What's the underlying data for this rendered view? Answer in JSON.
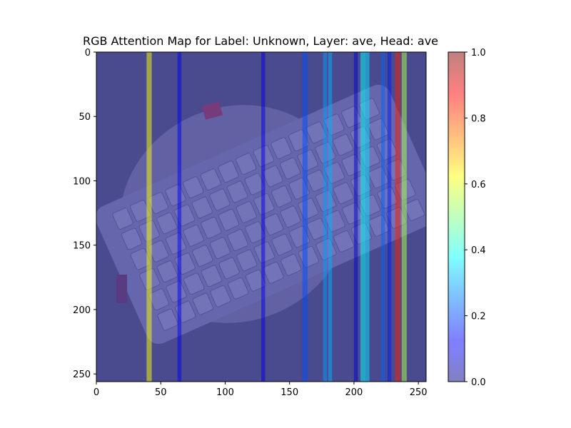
{
  "chart_data": {
    "type": "heatmap",
    "title": "RGB Attention Map for Label: Unknown, Layer: ave, Head: ave",
    "xlabel": "",
    "ylabel": "",
    "xlim": [
      0,
      256
    ],
    "ylim": [
      256,
      0
    ],
    "x_ticks": [
      0,
      50,
      100,
      150,
      200,
      250
    ],
    "y_ticks": [
      0,
      50,
      100,
      150,
      200,
      250
    ],
    "grid": false,
    "overlay_alpha": 0.5,
    "colormap": "jet",
    "background_image": "keyboard photo (white keyboard on dark surface)",
    "column_attention": [
      {
        "x": 39,
        "width": 4,
        "value": 0.62
      },
      {
        "x": 63,
        "width": 3,
        "value": 0.12
      },
      {
        "x": 128,
        "width": 3,
        "value": 0.1
      },
      {
        "x": 160,
        "width": 4,
        "value": 0.2
      },
      {
        "x": 176,
        "width": 3,
        "value": 0.28
      },
      {
        "x": 180,
        "width": 3,
        "value": 0.3
      },
      {
        "x": 200,
        "width": 3,
        "value": 0.08
      },
      {
        "x": 205,
        "width": 4,
        "value": 0.38
      },
      {
        "x": 209,
        "width": 3,
        "value": 0.35
      },
      {
        "x": 221,
        "width": 3,
        "value": 0.22
      },
      {
        "x": 226,
        "width": 3,
        "value": 0.15
      },
      {
        "x": 232,
        "width": 4,
        "value": 0.85
      },
      {
        "x": 237,
        "width": 4,
        "value": 0.55
      }
    ],
    "colorbar": {
      "range": [
        0,
        1
      ],
      "ticks": [
        "0.0",
        "0.2",
        "0.4",
        "0.6",
        "0.8",
        "1.0"
      ],
      "tick_values": [
        0,
        0.2,
        0.4,
        0.6,
        0.8,
        1.0
      ]
    }
  }
}
